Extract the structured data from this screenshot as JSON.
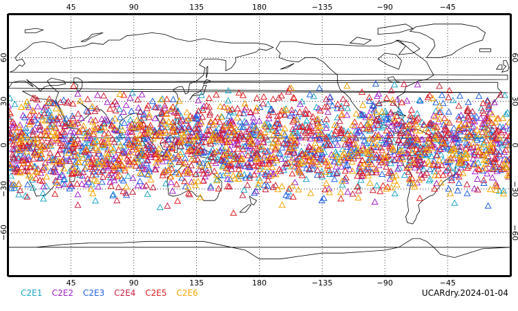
{
  "map": {
    "projection": "cylindrical-equidistant",
    "center_lon": 180,
    "lon_range": [
      0,
      360
    ],
    "lat_range": [
      -90,
      90
    ],
    "grid": "dotted",
    "marker_shape": "triangle",
    "marker_lat_band": [
      -45,
      45
    ],
    "lon_ticks_top": [
      "45",
      "90",
      "135",
      "180",
      "−135",
      "−90",
      "−45"
    ],
    "lon_ticks_bottom": [
      "45",
      "90",
      "135",
      "180",
      "−135",
      "−90",
      "−45"
    ],
    "lat_ticks": [
      "60",
      "30",
      "0",
      "−30",
      "−60"
    ]
  },
  "legend": {
    "series": [
      {
        "name": "C2E1",
        "color": "#1aa5c8"
      },
      {
        "name": "C2E2",
        "color": "#a020c8"
      },
      {
        "name": "C2E3",
        "color": "#1f5fe0"
      },
      {
        "name": "C2E4",
        "color": "#c81e3c"
      },
      {
        "name": "C2E5",
        "color": "#e01e1e"
      },
      {
        "name": "C2E6",
        "color": "#f5a500"
      }
    ]
  },
  "product_label": "UCARdry.2024-01-04"
}
